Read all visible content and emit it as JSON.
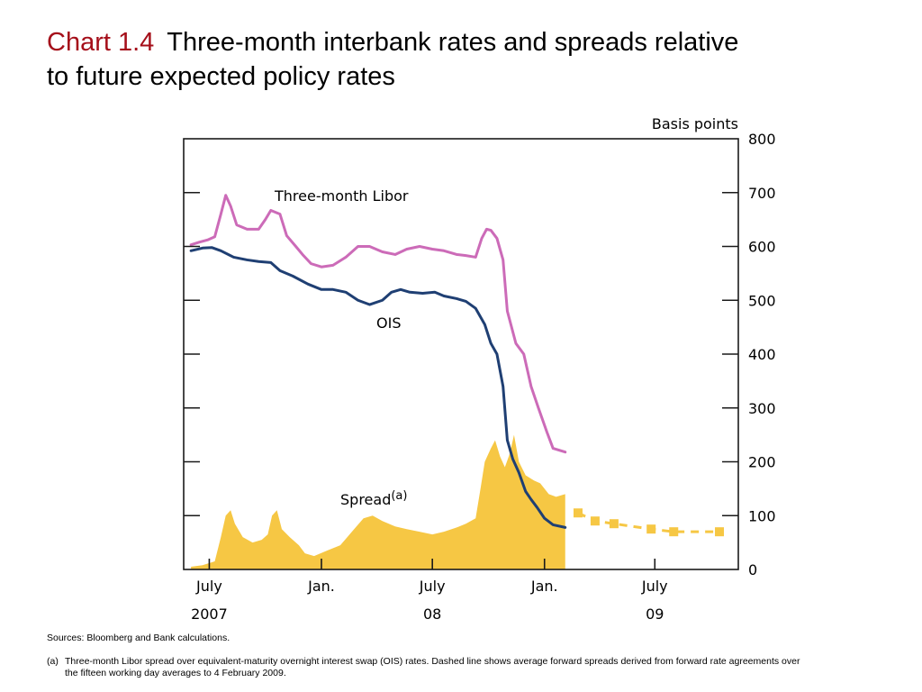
{
  "header": {
    "label": "Chart 1.4",
    "title_line1": "Three-month interbank rates and spreads relative",
    "title_line2": "to future expected policy rates"
  },
  "chart_data": {
    "type": "line",
    "unit_label": "Basis points",
    "ylim": [
      0,
      800
    ],
    "y_ticks": [
      "0",
      "100",
      "200",
      "300",
      "400",
      "500",
      "600",
      "700",
      "800"
    ],
    "x_ticks": [
      {
        "label": "July",
        "month": "2007-07"
      },
      {
        "label": "Jan.",
        "month": "2008-01"
      },
      {
        "label": "July",
        "month": "2008-07"
      },
      {
        "label": "Jan.",
        "month": "2009-01"
      },
      {
        "label": "July",
        "month": "2009-07"
      }
    ],
    "x_year_labels": [
      {
        "label": "2007",
        "month": "2007-07"
      },
      {
        "label": "08",
        "month": "2008-07"
      },
      {
        "label": "09",
        "month": "2009-07"
      }
    ],
    "xlim": [
      "2007-05-20",
      "2009-11-15"
    ],
    "legend": "inline labels",
    "series": [
      {
        "name": "Three-month Libor",
        "style": "line",
        "color": "#cc6bb8",
        "points": [
          [
            "2007-06-01",
            603
          ],
          [
            "2007-06-15",
            608
          ],
          [
            "2007-06-28",
            612
          ],
          [
            "2007-07-10",
            618
          ],
          [
            "2007-07-20",
            660
          ],
          [
            "2007-07-28",
            695
          ],
          [
            "2007-08-05",
            675
          ],
          [
            "2007-08-15",
            640
          ],
          [
            "2007-09-01",
            632
          ],
          [
            "2007-09-20",
            632
          ],
          [
            "2007-10-01",
            650
          ],
          [
            "2007-10-10",
            667
          ],
          [
            "2007-10-25",
            660
          ],
          [
            "2007-11-05",
            620
          ],
          [
            "2007-11-20",
            600
          ],
          [
            "2007-12-01",
            585
          ],
          [
            "2007-12-15",
            568
          ],
          [
            "2008-01-01",
            562
          ],
          [
            "2008-01-20",
            565
          ],
          [
            "2008-02-10",
            580
          ],
          [
            "2008-03-01",
            600
          ],
          [
            "2008-03-20",
            600
          ],
          [
            "2008-04-10",
            590
          ],
          [
            "2008-05-01",
            585
          ],
          [
            "2008-05-20",
            595
          ],
          [
            "2008-06-10",
            600
          ],
          [
            "2008-07-01",
            595
          ],
          [
            "2008-07-20",
            592
          ],
          [
            "2008-08-10",
            585
          ],
          [
            "2008-08-25",
            583
          ],
          [
            "2008-09-10",
            580
          ],
          [
            "2008-09-20",
            615
          ],
          [
            "2008-09-28",
            632
          ],
          [
            "2008-10-05",
            630
          ],
          [
            "2008-10-15",
            615
          ],
          [
            "2008-10-25",
            575
          ],
          [
            "2008-11-01",
            480
          ],
          [
            "2008-11-15",
            420
          ],
          [
            "2008-11-28",
            400
          ],
          [
            "2008-12-10",
            340
          ],
          [
            "2008-12-22",
            300
          ],
          [
            "2009-01-05",
            255
          ],
          [
            "2009-01-15",
            225
          ],
          [
            "2009-02-04",
            218
          ]
        ]
      },
      {
        "name": "OIS",
        "style": "line",
        "color": "#1f3f73",
        "points": [
          [
            "2007-06-01",
            592
          ],
          [
            "2007-06-20",
            597
          ],
          [
            "2007-07-05",
            598
          ],
          [
            "2007-07-20",
            592
          ],
          [
            "2007-08-10",
            580
          ],
          [
            "2007-09-01",
            575
          ],
          [
            "2007-09-20",
            572
          ],
          [
            "2007-10-10",
            570
          ],
          [
            "2007-10-25",
            555
          ],
          [
            "2007-11-15",
            545
          ],
          [
            "2007-12-10",
            530
          ],
          [
            "2008-01-01",
            520
          ],
          [
            "2008-01-20",
            520
          ],
          [
            "2008-02-10",
            515
          ],
          [
            "2008-03-01",
            500
          ],
          [
            "2008-03-20",
            492
          ],
          [
            "2008-04-10",
            500
          ],
          [
            "2008-04-25",
            515
          ],
          [
            "2008-05-10",
            520
          ],
          [
            "2008-05-25",
            515
          ],
          [
            "2008-06-15",
            513
          ],
          [
            "2008-07-05",
            515
          ],
          [
            "2008-07-20",
            508
          ],
          [
            "2008-08-10",
            503
          ],
          [
            "2008-08-25",
            498
          ],
          [
            "2008-09-10",
            485
          ],
          [
            "2008-09-25",
            455
          ],
          [
            "2008-10-05",
            420
          ],
          [
            "2008-10-15",
            400
          ],
          [
            "2008-10-25",
            340
          ],
          [
            "2008-11-01",
            240
          ],
          [
            "2008-11-10",
            205
          ],
          [
            "2008-11-20",
            180
          ],
          [
            "2008-12-01",
            145
          ],
          [
            "2008-12-10",
            130
          ],
          [
            "2008-12-20",
            115
          ],
          [
            "2009-01-01",
            95
          ],
          [
            "2009-01-15",
            83
          ],
          [
            "2009-02-04",
            78
          ]
        ]
      },
      {
        "name": "Spread(a)",
        "style": "area",
        "color": "#f6c744",
        "points": [
          [
            "2007-06-01",
            5
          ],
          [
            "2007-06-20",
            8
          ],
          [
            "2007-07-10",
            15
          ],
          [
            "2007-07-20",
            60
          ],
          [
            "2007-07-28",
            100
          ],
          [
            "2007-08-05",
            110
          ],
          [
            "2007-08-12",
            85
          ],
          [
            "2007-08-25",
            60
          ],
          [
            "2007-09-10",
            50
          ],
          [
            "2007-09-25",
            55
          ],
          [
            "2007-10-05",
            65
          ],
          [
            "2007-10-12",
            100
          ],
          [
            "2007-10-20",
            110
          ],
          [
            "2007-10-28",
            75
          ],
          [
            "2007-11-10",
            60
          ],
          [
            "2007-11-25",
            45
          ],
          [
            "2007-12-05",
            30
          ],
          [
            "2007-12-20",
            25
          ],
          [
            "2008-01-10",
            35
          ],
          [
            "2008-02-01",
            45
          ],
          [
            "2008-02-20",
            70
          ],
          [
            "2008-03-10",
            95
          ],
          [
            "2008-03-25",
            100
          ],
          [
            "2008-04-10",
            90
          ],
          [
            "2008-05-01",
            80
          ],
          [
            "2008-05-20",
            75
          ],
          [
            "2008-06-10",
            70
          ],
          [
            "2008-07-01",
            65
          ],
          [
            "2008-07-20",
            70
          ],
          [
            "2008-08-10",
            78
          ],
          [
            "2008-08-25",
            85
          ],
          [
            "2008-09-10",
            95
          ],
          [
            "2008-09-18",
            150
          ],
          [
            "2008-09-25",
            200
          ],
          [
            "2008-10-05",
            225
          ],
          [
            "2008-10-12",
            240
          ],
          [
            "2008-10-20",
            210
          ],
          [
            "2008-10-28",
            190
          ],
          [
            "2008-11-05",
            215
          ],
          [
            "2008-11-12",
            250
          ],
          [
            "2008-11-20",
            200
          ],
          [
            "2008-12-01",
            175
          ],
          [
            "2008-12-15",
            165
          ],
          [
            "2008-12-25",
            160
          ],
          [
            "2009-01-08",
            140
          ],
          [
            "2009-01-20",
            135
          ],
          [
            "2009-02-04",
            140
          ]
        ]
      },
      {
        "name": "Average forward spread",
        "style": "dashed",
        "color": "#f6c744",
        "points": [
          [
            "2009-02-25",
            105
          ],
          [
            "2009-03-25",
            90
          ],
          [
            "2009-04-25",
            85
          ],
          [
            "2009-06-25",
            75
          ],
          [
            "2009-08-01",
            70
          ],
          [
            "2009-10-15",
            70
          ]
        ]
      }
    ]
  },
  "notes": {
    "sources": "Sources:  Bloomberg and Bank calculations.",
    "footnote_marker": "(a)",
    "footnote_line1": "Three-month Libor spread over equivalent-maturity overnight interest swap (OIS) rates.  Dashed line shows average forward spreads derived from forward rate agreements over",
    "footnote_line2": "the fifteen working day averages to 4 February 2009."
  }
}
